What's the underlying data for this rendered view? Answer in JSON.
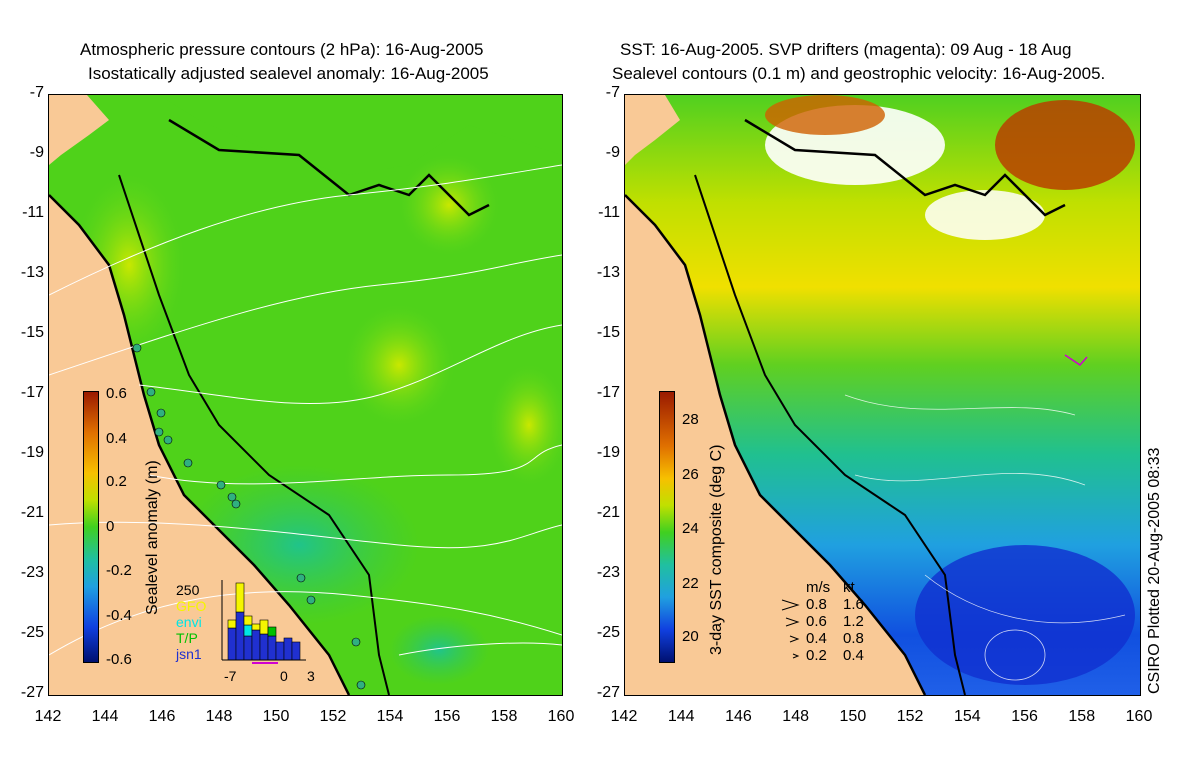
{
  "left_panel": {
    "title_line1": "Atmospheric pressure contours (2 hPa): 16-Aug-2005",
    "title_line2": "Isostatically adjusted sealevel anomaly: 16-Aug-2005",
    "colorbar_label": "Sealevel anomaly (m)",
    "colorbar_ticks": [
      "0.6",
      "0.4",
      "0.2",
      "0",
      "-0.2",
      "-0.4",
      "-0.6"
    ],
    "histogram": {
      "top_label": "250",
      "legend": [
        {
          "label": "GFO",
          "color": "#f5f500"
        },
        {
          "label": "envi",
          "color": "#00e5e5"
        },
        {
          "label": "T/P",
          "color": "#00c000"
        },
        {
          "label": "jsn1",
          "color": "#2030d0"
        }
      ],
      "x_ticks": [
        "-7",
        "0",
        "3"
      ]
    }
  },
  "right_panel": {
    "title_line1": "SST: 16-Aug-2005. SVP drifters (magenta): 09 Aug - 18 Aug",
    "title_line2": "Sealevel contours (0.1 m) and geostrophic velocity: 16-Aug-2005.",
    "colorbar_label": "3-day SST composite (deg C)",
    "colorbar_ticks": [
      "28",
      "26",
      "24",
      "22",
      "20"
    ],
    "velocity_key": {
      "header_ms": "m/s",
      "header_kt": "kt",
      "rows": [
        {
          "ms": "0.8",
          "kt": "1.6"
        },
        {
          "ms": "0.6",
          "kt": "1.2"
        },
        {
          "ms": "0.4",
          "kt": "0.8"
        },
        {
          "ms": "0.2",
          "kt": "0.4"
        }
      ]
    },
    "credit": "CSIRO Plotted 20-Aug-2005 08:33"
  },
  "axes": {
    "y_ticks": [
      "-7",
      "-9",
      "-11",
      "-13",
      "-15",
      "-17",
      "-19",
      "-21",
      "-23",
      "-25",
      "-27"
    ],
    "x_ticks": [
      "142",
      "144",
      "146",
      "148",
      "150",
      "152",
      "154",
      "156",
      "158",
      "160"
    ]
  },
  "colors": {
    "land": "#f9c996",
    "ocean_anomaly": "#3fcf1f",
    "coastline": "#000000",
    "drifter": "#d000d0"
  }
}
